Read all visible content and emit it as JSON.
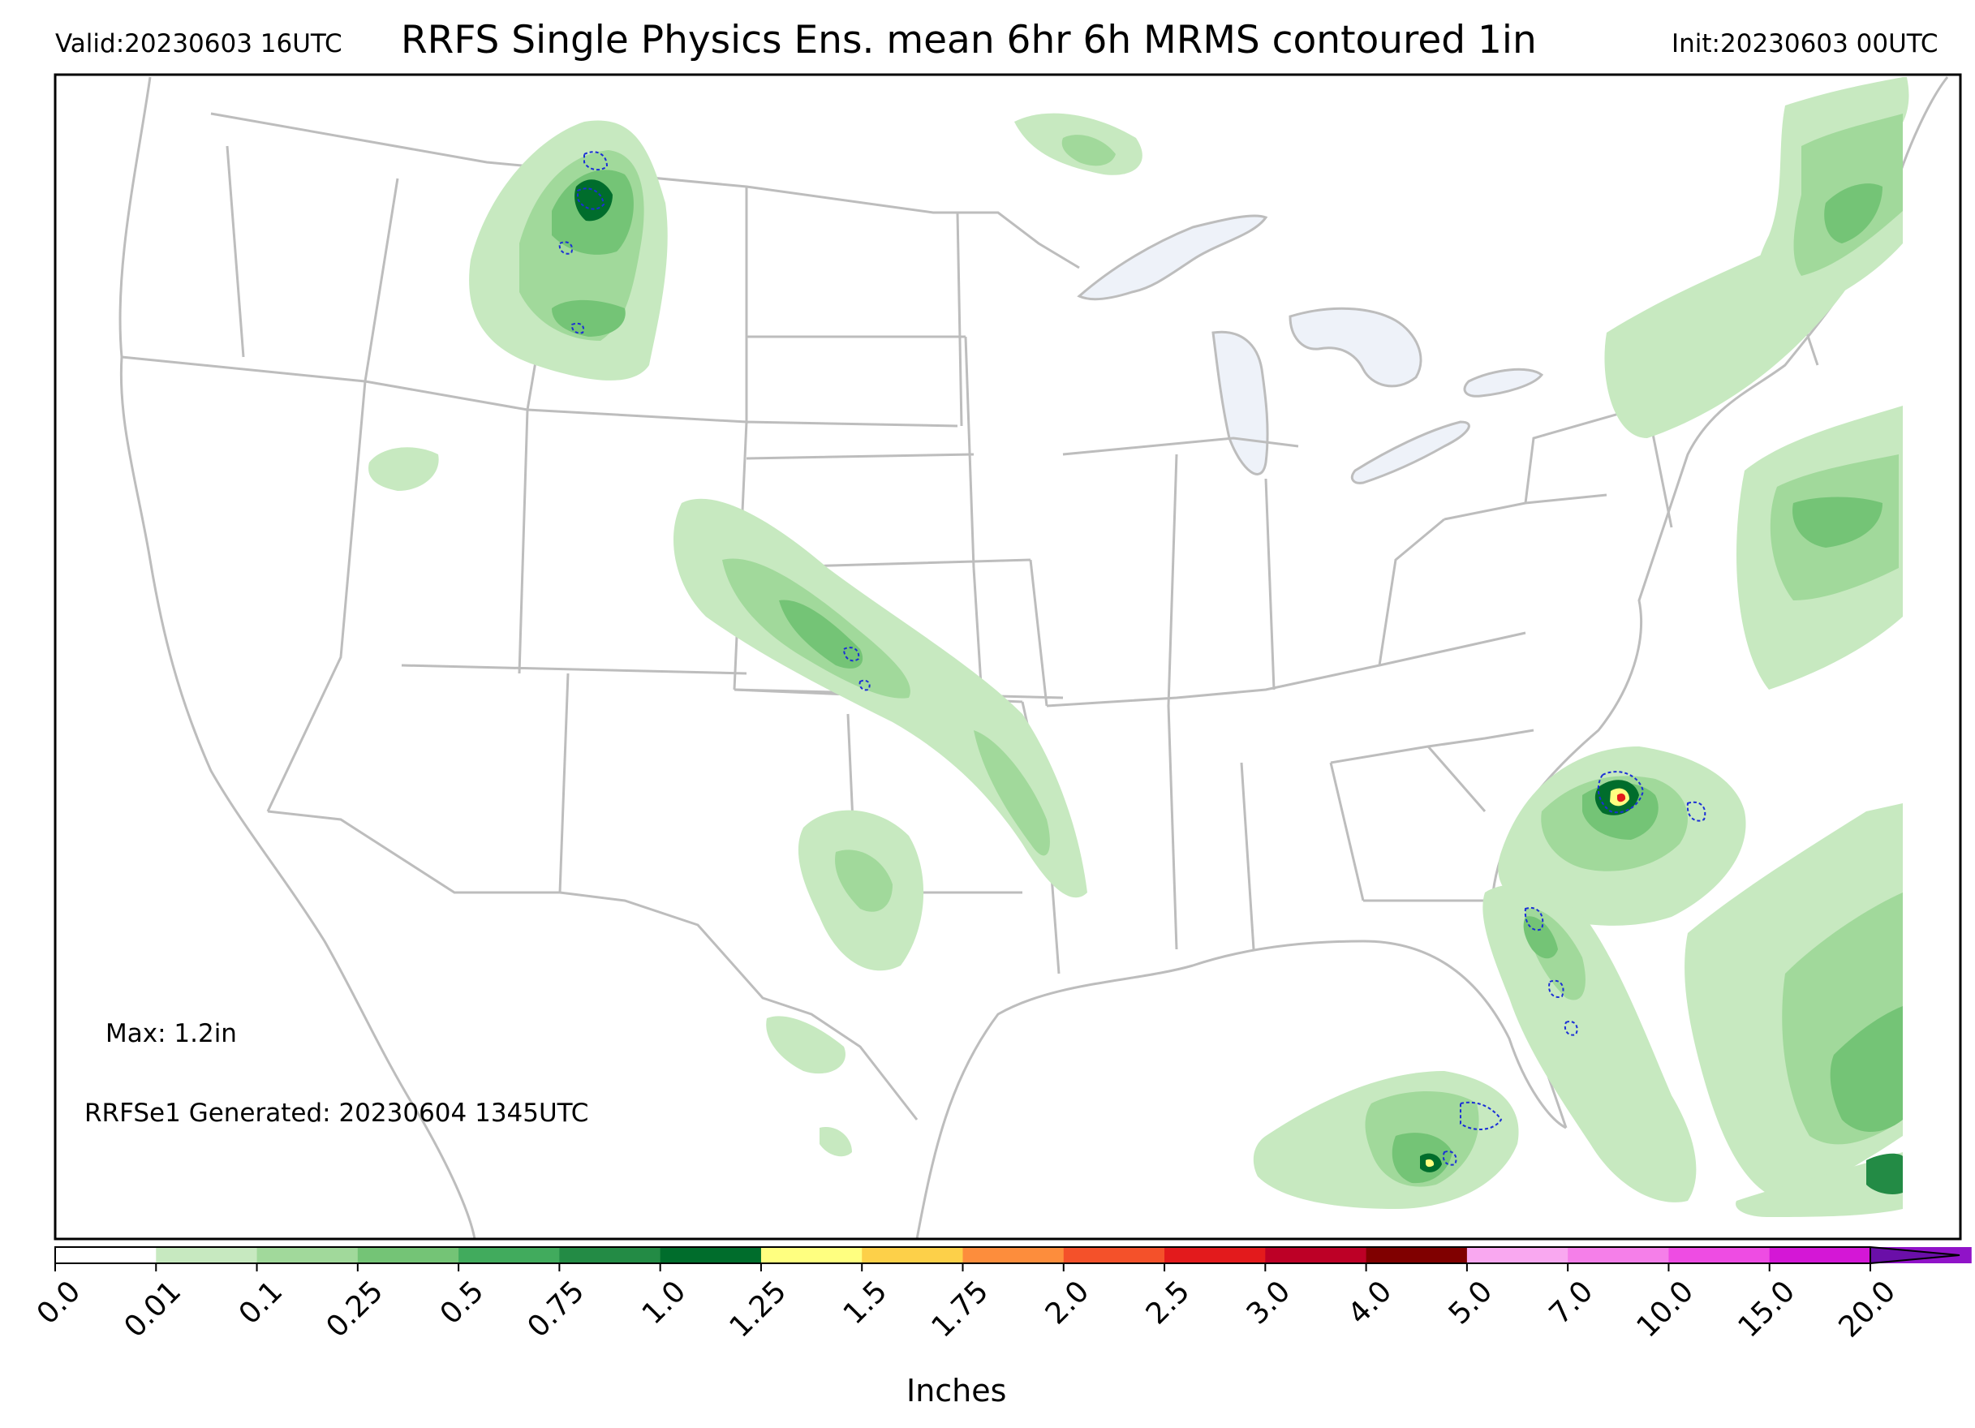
{
  "header": {
    "valid": "Valid:20230603 16UTC",
    "title": "RRFS Single Physics Ens. mean 6hr 6h MRMS contoured 1in",
    "init": "Init:20230603 00UTC"
  },
  "annotations": {
    "max": "Max: 1.2in",
    "generated": "RRFSe1 Generated: 20230604 1345UTC"
  },
  "colorbar": {
    "units_label": "Inches",
    "ticks": [
      "0.0",
      "0.01",
      "0.1",
      "0.25",
      "0.5",
      "0.75",
      "1.0",
      "1.25",
      "1.5",
      "1.75",
      "2.0",
      "2.5",
      "3.0",
      "4.0",
      "5.0",
      "7.0",
      "10.0",
      "15.0",
      "20.0"
    ],
    "colors": [
      "#ffffff",
      "#c7e9c0",
      "#a1d99b",
      "#74c476",
      "#41ab5d",
      "#238b45",
      "#006d2c",
      "#ffff80",
      "#fdd049",
      "#fd8d3c",
      "#f4512a",
      "#e31a1c",
      "#bd0026",
      "#800000",
      "#f9a8f0",
      "#f57fe9",
      "#ee4ce3",
      "#d417d6",
      "#9013c8"
    ],
    "extend_color": "#6a0fa8"
  },
  "map": {
    "precip_colors": {
      "light": "#c7e9c0",
      "mid": "#a1d99b",
      "medium": "#74c476",
      "heavy": "#41ab5d",
      "dark": "#238b45",
      "darkest": "#006d2c",
      "yellow": "#ffff80",
      "red": "#e31a1c"
    },
    "mrms_contour_color": "#1b2fd6",
    "lake_color": "#eef2f9",
    "border_color": "#bdbdbd"
  }
}
